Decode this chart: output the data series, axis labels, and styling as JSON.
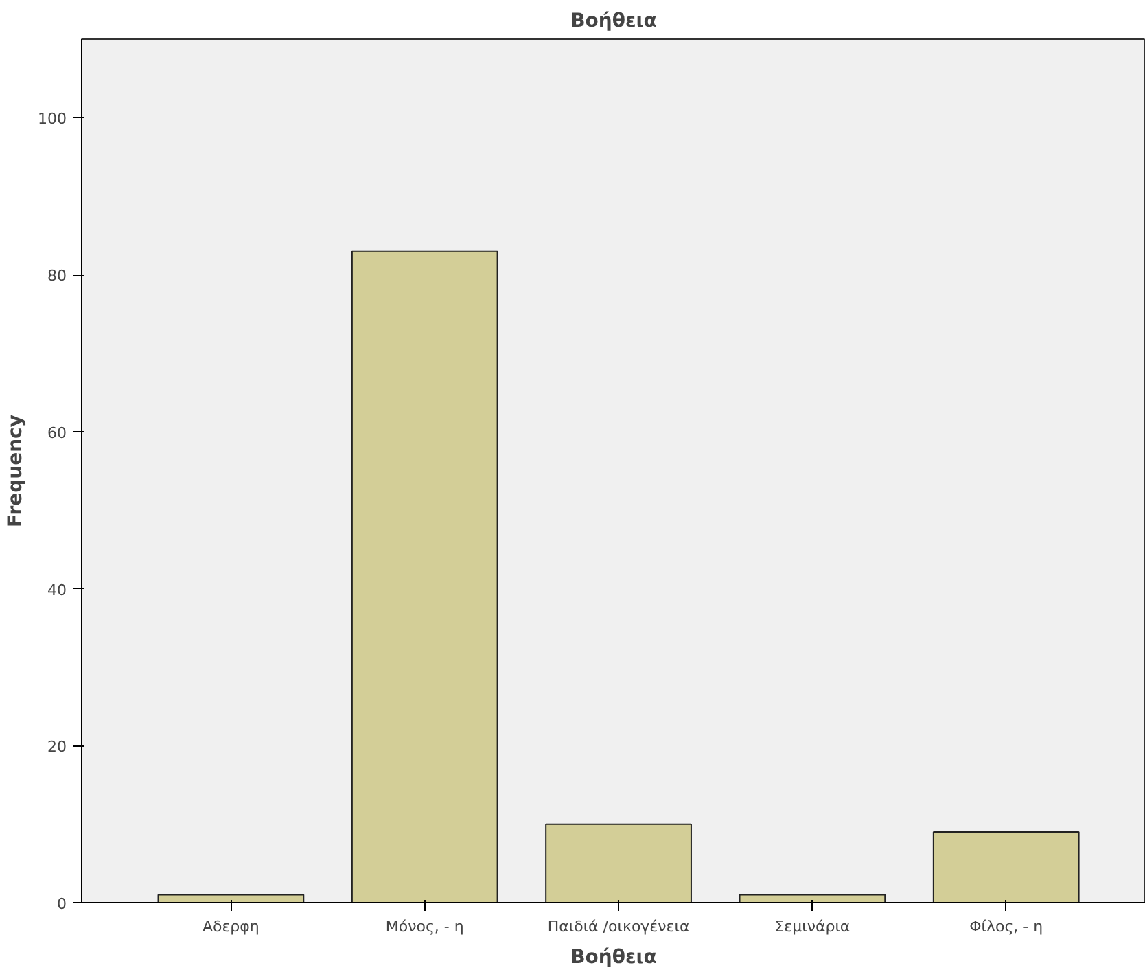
{
  "chart_data": {
    "type": "bar",
    "title": "Βοήθεια",
    "xlabel": "Βοήθεια",
    "ylabel": "Frequency",
    "categories": [
      "Αδερφη",
      "Μόνος, - η",
      "Παιδιά /οικογένεια",
      "Σεμινάρια",
      "Φίλος, - η"
    ],
    "values": [
      1,
      83,
      10,
      1,
      9
    ],
    "color": "#d3ce97",
    "ylim": [
      0,
      110
    ],
    "yticks": [
      0,
      20,
      40,
      60,
      80,
      100
    ],
    "grid": false
  }
}
